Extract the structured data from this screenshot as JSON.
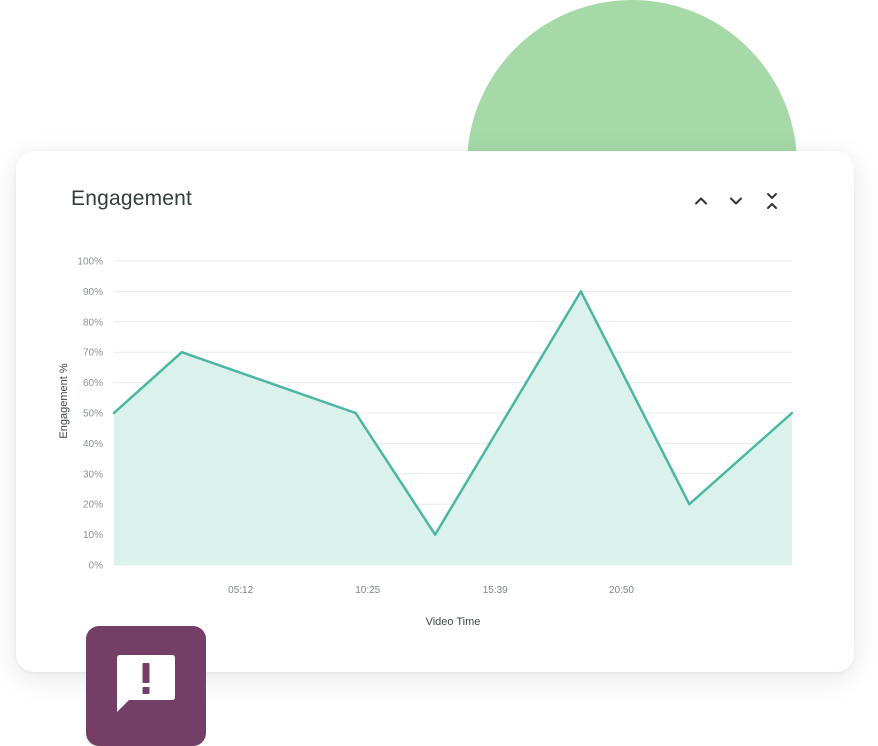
{
  "colors": {
    "blob": "#a5d9a8",
    "line": "#4ab6a3",
    "area": "#dbf1ec",
    "alert_tile": "#733f66",
    "grid": "#e9ecec"
  },
  "card": {
    "title": "Engagement",
    "controls": [
      {
        "name": "expand-up-button",
        "icon": "chevron-up-icon"
      },
      {
        "name": "expand-down-button",
        "icon": "chevron-down-icon"
      },
      {
        "name": "collapse-button",
        "icon": "collapse-icon"
      }
    ]
  },
  "alert": {
    "icon": "alert-message-icon"
  },
  "chart_data": {
    "type": "area",
    "title": "Engagement",
    "xlabel": "Video Time",
    "ylabel": "Engagement %",
    "x_ticks": [
      "05:12",
      "10:25",
      "15:39",
      "20:50"
    ],
    "x_tick_seconds": [
      312,
      625,
      939,
      1250
    ],
    "x": [
      0,
      167,
      595,
      791,
      1150,
      1417,
      1670
    ],
    "series": [
      {
        "values": [
          50,
          70,
          50,
          10,
          90,
          20,
          50
        ]
      }
    ],
    "xlim": [
      0,
      1670
    ],
    "ylim": [
      0,
      100
    ],
    "y_ticks": [
      0,
      10,
      20,
      30,
      40,
      50,
      60,
      70,
      80,
      90,
      100
    ],
    "y_tick_labels": [
      "0%",
      "10%",
      "20%",
      "30%",
      "40%",
      "50%",
      "60%",
      "70%",
      "80%",
      "90%",
      "100%"
    ],
    "grid": true,
    "legend": "none"
  }
}
